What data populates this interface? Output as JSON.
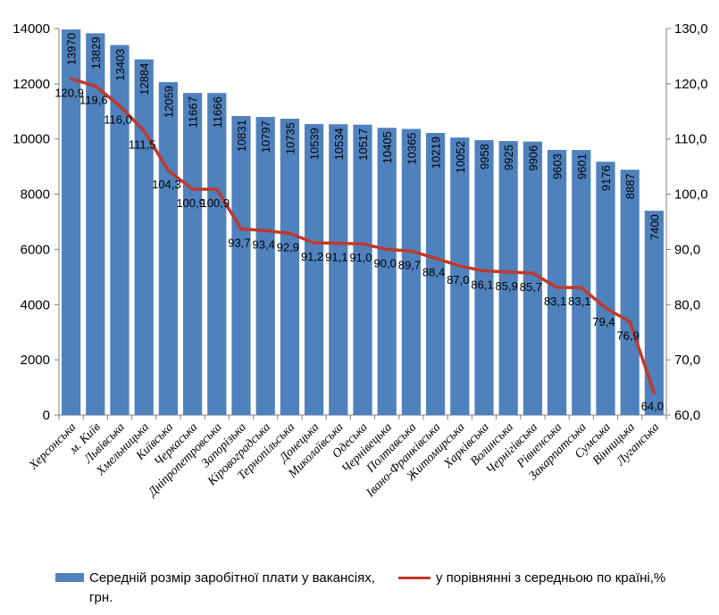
{
  "chart_data": {
    "type": "bar",
    "categories": [
      "Херсонська",
      "м. Київ",
      "Львівська",
      "Хмельницька",
      "Київська",
      "Черкаська",
      "Дніпропетровська",
      "Запорізька",
      "Кіровоградська",
      "Тернопільська",
      "Донецька",
      "Миколаївська",
      "Одеська",
      "Чернівецька",
      "Полтавська",
      "Івано-Франківська",
      "Житомирська",
      "Харківська",
      "Волинська",
      "Чернігівська",
      "Рівненська",
      "Закарпатська",
      "Сумська",
      "Вінницька",
      "Луганська"
    ],
    "series": [
      {
        "name": "Середній розмір заробітної плати у вакансіях, грн.",
        "type": "bar",
        "axis": "left",
        "color": "#4f81bd",
        "values": [
          13970,
          13829,
          13403,
          12884,
          12059,
          11667,
          11666,
          10831,
          10797,
          10735,
          10539,
          10534,
          10517,
          10405,
          10365,
          10219,
          10052,
          9958,
          9925,
          9906,
          9603,
          9601,
          9176,
          8887,
          7400
        ],
        "labels": [
          "13970",
          "13829",
          "13403",
          "12884",
          "12059",
          "11667",
          "11666",
          "10831",
          "10797",
          "10735",
          "10539",
          "10534",
          "10517",
          "10405",
          "10365",
          "10219",
          "10052",
          "9958",
          "9925",
          "9906",
          "9603",
          "9601",
          "9176",
          "8887",
          "7400"
        ]
      },
      {
        "name": "у порівнянні з середньою по країні,%",
        "type": "line",
        "axis": "right",
        "color": "#c0392b",
        "values": [
          120.9,
          119.6,
          116.0,
          111.5,
          104.3,
          100.9,
          100.9,
          93.7,
          93.4,
          92.9,
          91.2,
          91.1,
          91.0,
          90.0,
          89.7,
          88.4,
          87.0,
          86.1,
          85.9,
          85.7,
          83.1,
          83.1,
          79.4,
          76.9,
          64.0
        ],
        "labels": [
          "120,9",
          "119,6",
          "116,0",
          "111,5",
          "104,3",
          "100,9",
          "100,9",
          "93,7",
          "93,4",
          "92,9",
          "91,2",
          "91,1",
          "91,0",
          "90,0",
          "89,7",
          "88,4",
          "87,0",
          "86,1",
          "85,9",
          "85,7",
          "83,1",
          "83,1",
          "79,4",
          "76,9",
          "64,0"
        ]
      }
    ],
    "y_left": {
      "min": 0,
      "max": 14000,
      "ticks": [
        "0",
        "2000",
        "4000",
        "6000",
        "8000",
        "10000",
        "12000",
        "14000"
      ]
    },
    "y_right": {
      "min": 60,
      "max": 130,
      "ticks": [
        "60,0",
        "70,0",
        "80,0",
        "90,0",
        "100,0",
        "110,0",
        "120,0",
        "130,0"
      ]
    },
    "grid": false,
    "legend_position": "bottom"
  },
  "legend": {
    "bar_label": "Середній розмір заробітної плати у вакансіях, грн.",
    "line_label": "у порівнянні з середньою по країні,%"
  }
}
